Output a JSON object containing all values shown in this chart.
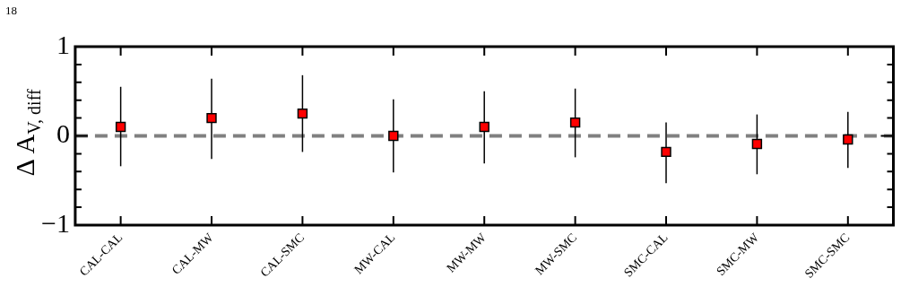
{
  "chart_data": {
    "type": "scatter",
    "categories": [
      "CAL-CAL",
      "CAL-MW",
      "CAL-SMC",
      "MW-CAL",
      "MW-MW",
      "MW-SMC",
      "SMC-CAL",
      "SMC-MW",
      "SMC-SMC"
    ],
    "series": [
      {
        "color": "#ff0000",
        "marker": "square",
        "values": [
          0.1,
          0.2,
          0.25,
          0.0,
          0.1,
          0.15,
          -0.18,
          -0.09,
          -0.04
        ],
        "errors": [
          [
            -0.34,
            0.55
          ],
          [
            -0.26,
            0.64
          ],
          [
            -0.18,
            0.68
          ],
          [
            -0.41,
            0.41
          ],
          [
            -0.31,
            0.5
          ],
          [
            -0.24,
            0.53
          ],
          [
            -0.53,
            0.15
          ],
          [
            -0.43,
            0.24
          ],
          [
            -0.36,
            0.27
          ]
        ]
      }
    ],
    "ylabel": "Δ A$_{V, diff}$",
    "ylim": [
      -1,
      1
    ],
    "yticks": [
      {
        "value": -1,
        "label": "−1"
      },
      {
        "value": -0.8,
        "label": null
      },
      {
        "value": -0.6,
        "label": null
      },
      {
        "value": -0.4,
        "label": null
      },
      {
        "value": -0.2,
        "label": null
      },
      0,
      {
        "value": 0.2,
        "label": null
      },
      {
        "value": 0.4,
        "label": null
      },
      {
        "value": 0.6,
        "label": null
      },
      {
        "value": 0.8,
        "label": null
      },
      1
    ],
    "ref_lines": [
      {
        "axis": "y",
        "value": 0,
        "label": null,
        "color": "#808080",
        "line_style": "dashed"
      }
    ],
    "annotations": [
      "18"
    ],
    "grid": false,
    "legend": false
  }
}
